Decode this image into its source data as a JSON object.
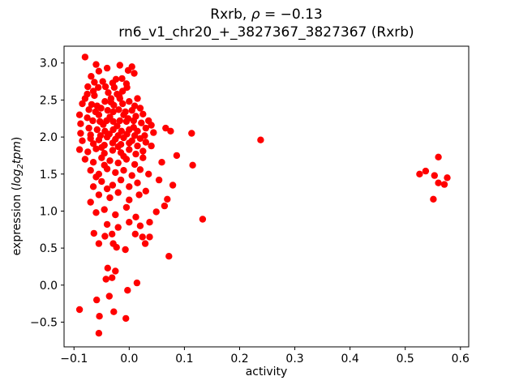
{
  "figure": {
    "title_parts": {
      "prefix": "Rxrb, ",
      "rho": "ρ",
      "rest": " = −0.13"
    },
    "subtitle": "rn6_v1_chr20_+_3827367_3827367 (Rxrb)",
    "xlabel": "activity",
    "ylabel_parts": {
      "prefix": "expression (",
      "log": "log",
      "sub": "2",
      "tpm": "tpm",
      "suffix": ")"
    }
  },
  "chart_data": {
    "type": "scatter",
    "title": "Rxrb, ρ = −0.13",
    "subtitle": "rn6_v1_chr20_+_3827367_3827367 (Rxrb)",
    "xlabel": "activity",
    "ylabel": "expression (log2 tpm)",
    "correlation_rho": -0.13,
    "legend": "none",
    "grid": false,
    "marker_color": "#ff0000",
    "marker_radius_px": 4.2,
    "xlim": [
      -0.118,
      0.615
    ],
    "ylim": [
      -0.834,
      3.227
    ],
    "x_ticks": [
      -0.1,
      0.0,
      0.1,
      0.2,
      0.3,
      0.4,
      0.5,
      0.6
    ],
    "x_tick_labels": [
      "−0.1",
      "0.0",
      "0.1",
      "0.2",
      "0.3",
      "0.4",
      "0.5",
      "0.6"
    ],
    "y_ticks": [
      -0.5,
      0.0,
      0.5,
      1.0,
      1.5,
      2.0,
      2.5,
      3.0
    ],
    "y_tick_labels": [
      "−0.5",
      "0.0",
      "0.5",
      "1.0",
      "1.5",
      "2.0",
      "2.5",
      "3.0"
    ],
    "points": [
      [
        -0.08,
        3.08
      ],
      [
        -0.06,
        2.98
      ],
      [
        -0.055,
        2.89
      ],
      [
        -0.017,
        2.97
      ],
      [
        -0.002,
        2.9
      ],
      [
        0.009,
        2.86
      ],
      [
        -0.04,
        2.93
      ],
      [
        0.005,
        2.95
      ],
      [
        -0.069,
        2.82
      ],
      [
        -0.063,
        2.74
      ],
      [
        -0.024,
        2.78
      ],
      [
        -0.013,
        2.79
      ],
      [
        -0.056,
        2.67
      ],
      [
        -0.043,
        2.68
      ],
      [
        -0.027,
        2.67
      ],
      [
        -0.004,
        2.67
      ],
      [
        -0.075,
        2.68
      ],
      [
        -0.03,
        2.73
      ],
      [
        -0.005,
        2.72
      ],
      [
        -0.048,
        2.75
      ],
      [
        -0.065,
        2.62
      ],
      [
        -0.038,
        2.6
      ],
      [
        -0.012,
        2.62
      ],
      [
        -0.076,
        2.58
      ],
      [
        -0.063,
        2.56
      ],
      [
        -0.022,
        2.58
      ],
      [
        -0.018,
        2.55
      ],
      [
        0.015,
        2.52
      ],
      [
        -0.033,
        2.52
      ],
      [
        -0.08,
        2.52
      ],
      [
        -0.044,
        2.48
      ],
      [
        -0.033,
        2.47
      ],
      [
        -0.017,
        2.52
      ],
      [
        -0.012,
        2.45
      ],
      [
        -0.085,
        2.45
      ],
      [
        0.0,
        2.48
      ],
      [
        -0.068,
        2.44
      ],
      [
        -0.058,
        2.42
      ],
      [
        0.01,
        2.42
      ],
      [
        -0.028,
        2.43
      ],
      [
        -0.073,
        2.37
      ],
      [
        -0.061,
        2.34
      ],
      [
        -0.051,
        2.39
      ],
      [
        -0.039,
        2.36
      ],
      [
        -0.029,
        2.34
      ],
      [
        -0.019,
        2.37
      ],
      [
        -0.007,
        2.34
      ],
      [
        0.005,
        2.36
      ],
      [
        0.02,
        2.39
      ],
      [
        -0.09,
        2.3
      ],
      [
        -0.055,
        2.3
      ],
      [
        -0.035,
        2.27
      ],
      [
        -0.01,
        2.3
      ],
      [
        0.012,
        2.28
      ],
      [
        0.025,
        2.31
      ],
      [
        -0.076,
        2.26
      ],
      [
        -0.066,
        2.22
      ],
      [
        -0.053,
        2.21
      ],
      [
        -0.041,
        2.22
      ],
      [
        -0.029,
        2.21
      ],
      [
        -0.017,
        2.22
      ],
      [
        -0.005,
        2.21
      ],
      [
        0.008,
        2.22
      ],
      [
        0.022,
        2.19
      ],
      [
        -0.088,
        2.18
      ],
      [
        -0.047,
        2.17
      ],
      [
        -0.022,
        2.15
      ],
      [
        0.008,
        2.13
      ],
      [
        0.035,
        2.22
      ],
      [
        0.04,
        2.16
      ],
      [
        -0.002,
        2.25
      ],
      [
        -0.073,
        2.12
      ],
      [
        -0.058,
        2.1
      ],
      [
        -0.044,
        2.08
      ],
      [
        -0.029,
        2.1
      ],
      [
        -0.014,
        2.08
      ],
      [
        0.0,
        2.1
      ],
      [
        0.015,
        2.08
      ],
      [
        0.03,
        2.12
      ],
      [
        0.044,
        2.06
      ],
      [
        0.066,
        2.12
      ],
      [
        0.075,
        2.08
      ],
      [
        0.113,
        2.05
      ],
      [
        -0.088,
        2.05
      ],
      [
        -0.07,
        2.03
      ],
      [
        -0.052,
        2.02
      ],
      [
        -0.036,
        2.04
      ],
      [
        -0.02,
        2.02
      ],
      [
        -0.004,
        2.04
      ],
      [
        0.01,
        2.02
      ],
      [
        0.028,
        2.02
      ],
      [
        -0.085,
        1.95
      ],
      [
        -0.07,
        1.98
      ],
      [
        -0.055,
        1.96
      ],
      [
        -0.04,
        2.0
      ],
      [
        -0.025,
        1.97
      ],
      [
        -0.01,
        1.99
      ],
      [
        0.005,
        1.95
      ],
      [
        0.02,
        1.98
      ],
      [
        -0.065,
        1.91
      ],
      [
        -0.045,
        1.89
      ],
      [
        -0.03,
        1.92
      ],
      [
        -0.015,
        1.9
      ],
      [
        0.0,
        1.92
      ],
      [
        0.015,
        1.88
      ],
      [
        0.03,
        1.93
      ],
      [
        0.04,
        1.88
      ],
      [
        -0.09,
        1.83
      ],
      [
        -0.075,
        1.8
      ],
      [
        -0.06,
        1.84
      ],
      [
        -0.045,
        1.78
      ],
      [
        -0.03,
        1.82
      ],
      [
        -0.015,
        1.79
      ],
      [
        0.0,
        1.83
      ],
      [
        0.012,
        1.77
      ],
      [
        0.025,
        1.81
      ],
      [
        -0.05,
        1.86
      ],
      [
        -0.02,
        1.87
      ],
      [
        -0.08,
        1.7
      ],
      [
        -0.065,
        1.66
      ],
      [
        -0.05,
        1.72
      ],
      [
        -0.035,
        1.68
      ],
      [
        -0.02,
        1.65
      ],
      [
        -0.005,
        1.7
      ],
      [
        0.01,
        1.63
      ],
      [
        0.025,
        1.72
      ],
      [
        -0.045,
        1.62
      ],
      [
        -0.01,
        1.74
      ],
      [
        0.086,
        1.75
      ],
      [
        0.059,
        1.66
      ],
      [
        0.115,
        1.62
      ],
      [
        -0.07,
        1.55
      ],
      [
        -0.055,
        1.5
      ],
      [
        -0.04,
        1.57
      ],
      [
        -0.025,
        1.52
      ],
      [
        -0.01,
        1.55
      ],
      [
        0.005,
        1.48
      ],
      [
        0.02,
        1.56
      ],
      [
        -0.06,
        1.46
      ],
      [
        0.035,
        1.5
      ],
      [
        -0.05,
        1.4
      ],
      [
        -0.03,
        1.35
      ],
      [
        -0.015,
        1.42
      ],
      [
        0.0,
        1.33
      ],
      [
        0.015,
        1.38
      ],
      [
        -0.065,
        1.33
      ],
      [
        -0.04,
        1.3
      ],
      [
        0.054,
        1.42
      ],
      [
        0.079,
        1.35
      ],
      [
        -0.055,
        1.22
      ],
      [
        -0.035,
        1.18
      ],
      [
        -0.02,
        1.25
      ],
      [
        0.0,
        1.15
      ],
      [
        0.018,
        1.22
      ],
      [
        -0.07,
        1.12
      ],
      [
        0.03,
        1.27
      ],
      [
        0.069,
        1.16
      ],
      [
        -0.045,
        1.02
      ],
      [
        -0.025,
        0.95
      ],
      [
        -0.005,
        1.05
      ],
      [
        0.012,
        0.92
      ],
      [
        -0.06,
        0.98
      ],
      [
        0.064,
        1.07
      ],
      [
        0.049,
        0.99
      ],
      [
        0.133,
        0.89
      ],
      [
        -0.04,
        0.82
      ],
      [
        -0.02,
        0.78
      ],
      [
        0.0,
        0.85
      ],
      [
        0.02,
        0.8
      ],
      [
        0.037,
        0.85
      ],
      [
        -0.064,
        0.7
      ],
      [
        -0.044,
        0.66
      ],
      [
        -0.031,
        0.69
      ],
      [
        0.011,
        0.69
      ],
      [
        0.024,
        0.65
      ],
      [
        0.037,
        0.65
      ],
      [
        -0.055,
        0.56
      ],
      [
        -0.029,
        0.56
      ],
      [
        -0.023,
        0.51
      ],
      [
        -0.007,
        0.48
      ],
      [
        0.029,
        0.56
      ],
      [
        0.072,
        0.39
      ],
      [
        -0.039,
        0.23
      ],
      [
        -0.025,
        0.19
      ],
      [
        -0.042,
        0.08
      ],
      [
        -0.031,
        0.1
      ],
      [
        0.014,
        0.03
      ],
      [
        -0.003,
        -0.07
      ],
      [
        -0.059,
        -0.2
      ],
      [
        -0.036,
        -0.15
      ],
      [
        -0.09,
        -0.33
      ],
      [
        -0.054,
        -0.42
      ],
      [
        -0.028,
        -0.36
      ],
      [
        -0.006,
        -0.45
      ],
      [
        -0.055,
        -0.65
      ],
      [
        0.238,
        1.96
      ],
      [
        0.56,
        1.73
      ],
      [
        0.526,
        1.5
      ],
      [
        0.537,
        1.54
      ],
      [
        0.553,
        1.48
      ],
      [
        0.576,
        1.45
      ],
      [
        0.56,
        1.38
      ],
      [
        0.571,
        1.36
      ],
      [
        0.551,
        1.16
      ]
    ]
  }
}
